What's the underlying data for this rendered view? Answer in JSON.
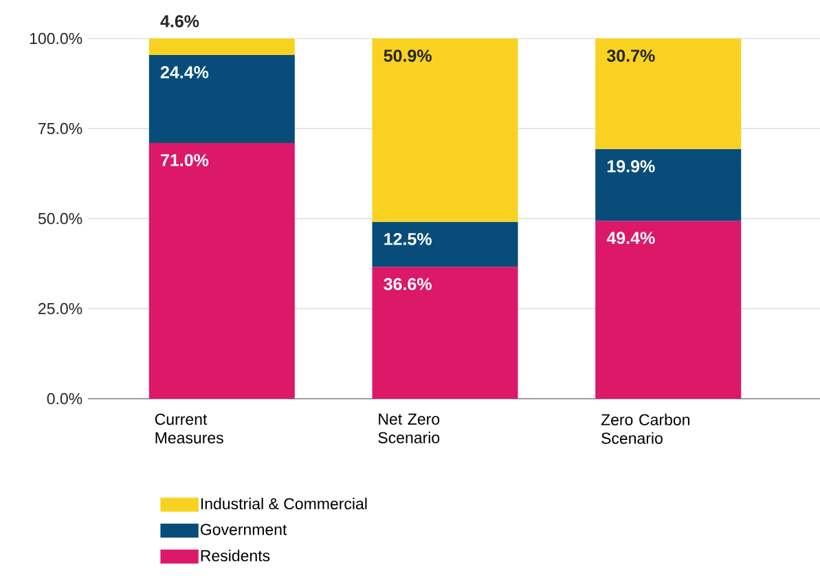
{
  "chart_data": {
    "type": "bar",
    "stacked": true,
    "categories": [
      "Current Measures",
      "Net Zero Scenario",
      "Zero Carbon Scenario"
    ],
    "series": [
      {
        "name": "Residents",
        "color": "#db1968",
        "values": [
          71.0,
          36.6,
          49.4
        ],
        "value_labels": [
          "71.0%",
          "36.6%",
          "49.4%"
        ]
      },
      {
        "name": "Government",
        "color": "#084d7a",
        "values": [
          24.4,
          12.5,
          19.9
        ],
        "value_labels": [
          "24.4%",
          "12.5%",
          "19.9%"
        ]
      },
      {
        "name": "Industrial & Commercial",
        "color": "#f9d121",
        "values": [
          4.6,
          50.9,
          30.7
        ],
        "value_labels": [
          "4.6%",
          "50.9%",
          "30.7%"
        ]
      }
    ],
    "ylim": [
      0,
      100
    ],
    "yticks": [
      {
        "value": 0,
        "label": "0.0%"
      },
      {
        "value": 25,
        "label": "25.0%"
      },
      {
        "value": 50,
        "label": "50.0%"
      },
      {
        "value": 75,
        "label": "75.0%"
      },
      {
        "value": 100,
        "label": "100.0%"
      }
    ],
    "grid": "y",
    "legend": "bottom"
  }
}
